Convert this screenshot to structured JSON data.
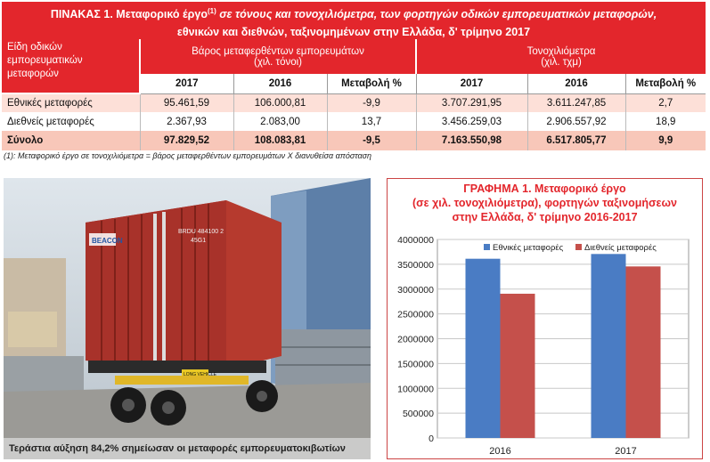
{
  "table": {
    "title_prefix": "ΠΙΝΑΚΑΣ 1. Μεταφορικό έργο",
    "title_sup": "(1)",
    "title_rest": " σε τόνους και τονοχιλιόμετρα, των φορτηγών οδικών εμπορευματικών μεταφορών,",
    "title_line2": "εθνικών και διεθνών, ταξινομημένων στην Ελλάδα, δ' τρίμηνο 2017",
    "col0": "Είδη οδικών εμπορευματικών μεταφορών",
    "group1": "Βάρος μεταφερθέντων εμπορευμάτων",
    "group1_unit": "(χιλ. τόνοι)",
    "group2": "Τονοχιλιόμετρα",
    "group2_unit": "(χιλ. τχμ)",
    "subheaders": [
      "2017",
      "2016",
      "Μεταβολή %",
      "2017",
      "2016",
      "Μεταβολή %"
    ],
    "rows": [
      {
        "label": "Εθνικές μεταφορές",
        "values": [
          "95.461,59",
          "106.000,81",
          "-9,9",
          "3.707.291,95",
          "3.611.247,85",
          "2,7"
        ]
      },
      {
        "label": "Διεθνείς μεταφορές",
        "values": [
          "2.367,93",
          "2.083,00",
          "13,7",
          "3.456.259,03",
          "2.906.557,92",
          "18,9"
        ]
      },
      {
        "label": "Σύνολο",
        "values": [
          "97.829,52",
          "108.083,81",
          "-9,5",
          "7.163.550,98",
          "6.517.805,77",
          "9,9"
        ]
      }
    ],
    "footnote": "(1): Μεταφορικό έργο σε τονοχιλιόμετρα = βάρος μεταφερθέντων εμπορευμάτων Χ διανυθείσα απόσταση"
  },
  "photo": {
    "caption": "Τεράστια αύξηση 84,2% σημείωσαν οι μεταφορές εμπορευματοκιβωτίων",
    "container_text": "BEACON",
    "container_code": "BRDU 484100 2",
    "container_code2": "45G1",
    "plate_text": "LONG VEHICLE"
  },
  "chart_data": {
    "type": "bar",
    "title": "ΓΡΑΦΗΜΑ 1. Μεταφορικό έργο (σε χιλ. τονοχιλιόμετρα), φορτηγών ταξινομήσεων στην Ελλάδα, δ' τρίμηνο 2016-2017",
    "title_lines": [
      "ΓΡΑΦΗΜΑ 1. Μεταφορικό έργο",
      "(σε χιλ. τονοχιλιόμετρα), φορτηγών ταξινομήσεων",
      "στην Ελλάδα, δ' τρίμηνο 2016-2017"
    ],
    "categories": [
      "2016",
      "2017"
    ],
    "series": [
      {
        "name": "Εθνικές μεταφορές",
        "color": "#4a7cc4",
        "values": [
          3611247.85,
          3707291.95
        ]
      },
      {
        "name": "Διεθνείς μεταφορές",
        "color": "#c5504b",
        "values": [
          2906557.92,
          3456259.03
        ]
      }
    ],
    "ylim": [
      0,
      4000000
    ],
    "yticks": [
      "0",
      "500000",
      "1000000",
      "1500000",
      "2000000",
      "2500000",
      "3000000",
      "3500000",
      "4000000"
    ],
    "grid": true,
    "legend": "top"
  }
}
